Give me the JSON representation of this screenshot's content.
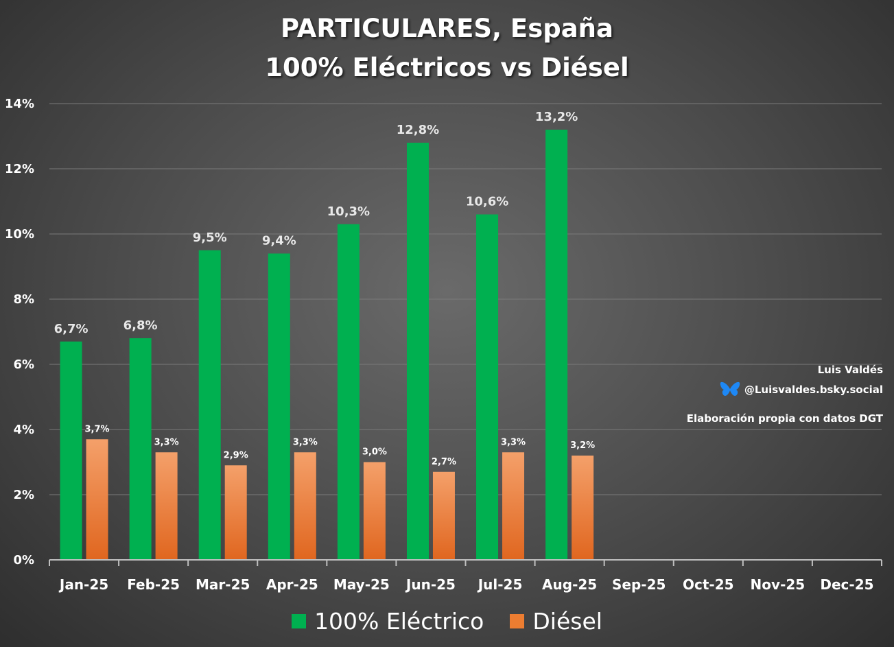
{
  "chart_data": {
    "type": "bar",
    "title": "PARTICULARES, España",
    "subtitle": "100% Eléctricos vs Diésel",
    "categories": [
      "Jan-25",
      "Feb-25",
      "Mar-25",
      "Apr-25",
      "May-25",
      "Jun-25",
      "Jul-25",
      "Aug-25",
      "Sep-25",
      "Oct-25",
      "Nov-25",
      "Dec-25"
    ],
    "series": [
      {
        "name": "100% Eléctrico",
        "color": "#00b050",
        "values": [
          6.7,
          6.8,
          9.5,
          9.4,
          10.3,
          12.8,
          10.6,
          13.2,
          null,
          null,
          null,
          null
        ],
        "labels": [
          "6,7%",
          "6,8%",
          "9,5%",
          "9,4%",
          "10,3%",
          "12,8%",
          "10,6%",
          "13,2%",
          null,
          null,
          null,
          null
        ]
      },
      {
        "name": "Diésel",
        "color": "#ed7d31",
        "values": [
          3.7,
          3.3,
          2.9,
          3.3,
          3.0,
          2.7,
          3.3,
          3.2,
          null,
          null,
          null,
          null
        ],
        "labels": [
          "3,7%",
          "3,3%",
          "2,9%",
          "3,3%",
          "3,0%",
          "2,7%",
          "3,3%",
          "3,2%",
          null,
          null,
          null,
          null
        ]
      }
    ],
    "ylim": [
      0,
      14
    ],
    "yticks": [
      0,
      2,
      4,
      6,
      8,
      10,
      12,
      14
    ],
    "ytick_labels": [
      "0%",
      "2%",
      "4%",
      "6%",
      "8%",
      "10%",
      "12%",
      "14%"
    ],
    "grid": true,
    "legend": "bottom-center",
    "xlabel": "",
    "ylabel": ""
  },
  "credits": {
    "author": "Luis Valdés",
    "handle": "@Luisvaldes.bsky.social",
    "handle_icon": "butterfly-icon",
    "source": "Elaboración propia con datos DGT"
  }
}
